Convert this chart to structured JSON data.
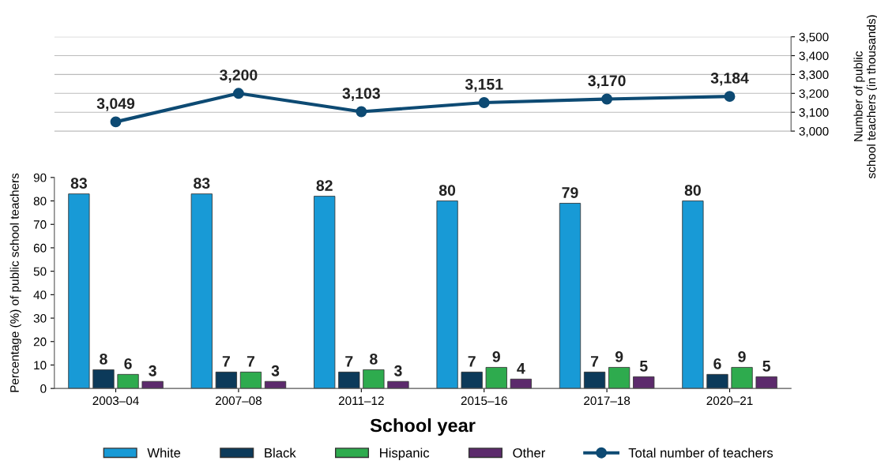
{
  "chart_data": {
    "type": "bar",
    "xlabel": "School year",
    "ylabel": "Percentage (%) of public school teachers",
    "y2label": "Number of public\nschool teachers (in thousands)",
    "categories": [
      "2003–04",
      "2007–08",
      "2011–12",
      "2015–16",
      "2017–18",
      "2020–21"
    ],
    "series": [
      {
        "name": "White",
        "color": "#189ad6",
        "values": [
          83,
          83,
          82,
          80,
          79,
          80
        ]
      },
      {
        "name": "Black",
        "color": "#0c3a5a",
        "values": [
          8,
          7,
          7,
          7,
          7,
          6
        ]
      },
      {
        "name": "Hispanic",
        "color": "#2eab4e",
        "values": [
          6,
          7,
          8,
          9,
          9,
          9
        ]
      },
      {
        "name": "Other",
        "color": "#5c2a6c",
        "values": [
          3,
          3,
          3,
          4,
          5,
          5
        ]
      },
      {
        "name": "Total number of teachers",
        "type": "line",
        "axis": "y2",
        "color": "#0d4a73",
        "marker": "circle",
        "values": [
          3049,
          3200,
          3103,
          3151,
          3170,
          3184
        ],
        "value_labels": [
          "3,049",
          "3,200",
          "3,103",
          "3,151",
          "3,170",
          "3,184"
        ]
      }
    ],
    "ylim": [
      0,
      150
    ],
    "yticks": [
      0,
      10,
      20,
      30,
      40,
      50,
      60,
      70,
      80,
      90
    ],
    "y2lim": [
      1635,
      3500
    ],
    "y2ticks": [
      {
        "value": 3000,
        "label": "3,000"
      },
      {
        "value": 3100,
        "label": "3,100"
      },
      {
        "value": 3200,
        "label": "3,200"
      },
      {
        "value": 3300,
        "label": "3,300"
      },
      {
        "value": 3400,
        "label": "3,400"
      },
      {
        "value": 3500,
        "label": "3,500"
      }
    ],
    "data_labels": true,
    "grid": true,
    "legend": "bottom"
  }
}
